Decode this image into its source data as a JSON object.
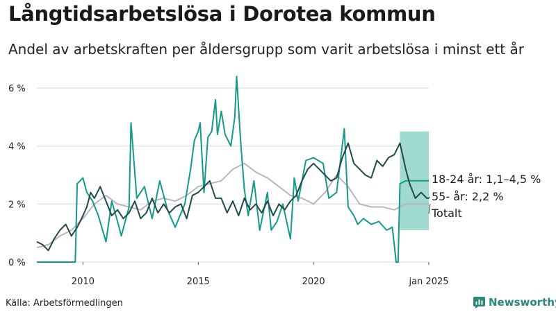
{
  "header": {
    "title": "Långtidsarbetslösa i Dorotea kommun",
    "subtitle": "Andel av arbetskraften per åldersgrupp som varit arbetslösa i minst ett år"
  },
  "footer": {
    "source": "Källa: Arbetsförmedlingen",
    "brand": "Newsworthy"
  },
  "colors": {
    "age_18_24": "#14998a",
    "band_18_24": "#8fd3c9",
    "age_55": "#1f4a47",
    "total": "#b9b5bf",
    "grid": "#d9d9d9"
  },
  "chart_data": {
    "type": "line",
    "x_ticks": [
      "2010",
      "2015",
      "2020",
      "jan 2025"
    ],
    "y_ticks": [
      "0 %",
      "2 %",
      "4 %",
      "6 %"
    ],
    "ylim": [
      0,
      6.5
    ],
    "xlim": [
      "2008-01",
      "2025-01"
    ],
    "grid": "horizontal",
    "series": [
      {
        "key": "age_18_24",
        "label": "18-24 år: 1,1–4,5 %",
        "end_band": [
          1.1,
          4.5
        ],
        "points": [
          [
            "2008-01",
            0
          ],
          [
            "2009-06",
            0
          ],
          [
            "2009-09",
            0
          ],
          [
            "2009-10",
            2.7
          ],
          [
            "2010-01",
            2.9
          ],
          [
            "2010-03",
            2.4
          ],
          [
            "2010-06",
            2.1
          ],
          [
            "2010-09",
            1.6
          ],
          [
            "2011-01",
            0.7
          ],
          [
            "2011-04",
            2.1
          ],
          [
            "2011-07",
            1.4
          ],
          [
            "2011-09",
            0.9
          ],
          [
            "2012-01",
            1.9
          ],
          [
            "2012-02",
            4.8
          ],
          [
            "2012-05",
            2.2
          ],
          [
            "2012-09",
            2.6
          ],
          [
            "2013-01",
            1.5
          ],
          [
            "2013-05",
            2.8
          ],
          [
            "2013-09",
            1.8
          ],
          [
            "2014-01",
            1.2
          ],
          [
            "2014-06",
            2.0
          ],
          [
            "2014-09",
            3.2
          ],
          [
            "2014-11",
            4.2
          ],
          [
            "2015-01",
            4.5
          ],
          [
            "2015-02",
            4.8
          ],
          [
            "2015-04",
            2.4
          ],
          [
            "2015-06",
            4.3
          ],
          [
            "2015-08",
            4.5
          ],
          [
            "2015-10",
            5.6
          ],
          [
            "2015-11",
            4.4
          ],
          [
            "2016-01",
            5.2
          ],
          [
            "2016-03",
            4.4
          ],
          [
            "2016-06",
            4.0
          ],
          [
            "2016-08",
            5.0
          ],
          [
            "2016-09",
            6.4
          ],
          [
            "2016-11",
            4.2
          ],
          [
            "2017-01",
            2.5
          ],
          [
            "2017-03",
            1.6
          ],
          [
            "2017-06",
            2.8
          ],
          [
            "2017-09",
            1.1
          ],
          [
            "2018-01",
            2.4
          ],
          [
            "2018-03",
            1.1
          ],
          [
            "2018-06",
            1.4
          ],
          [
            "2018-09",
            2.0
          ],
          [
            "2019-01",
            0.8
          ],
          [
            "2019-03",
            2.9
          ],
          [
            "2019-05",
            2.1
          ],
          [
            "2019-09",
            3.5
          ],
          [
            "2020-01",
            3.6
          ],
          [
            "2020-06",
            3.4
          ],
          [
            "2020-09",
            2.2
          ],
          [
            "2021-01",
            2.4
          ],
          [
            "2021-05",
            4.6
          ],
          [
            "2021-07",
            1.9
          ],
          [
            "2021-10",
            1.6
          ],
          [
            "2021-12",
            1.3
          ],
          [
            "2022-03",
            1.5
          ],
          [
            "2022-07",
            1.3
          ],
          [
            "2022-11",
            1.4
          ],
          [
            "2023-03",
            1.1
          ],
          [
            "2023-06",
            1.2
          ],
          [
            "2023-08",
            0.0
          ],
          [
            "2023-09",
            0.0
          ],
          [
            "2023-10",
            2.7
          ],
          [
            "2024-01",
            2.8
          ],
          [
            "2024-06",
            2.8
          ],
          [
            "2025-01",
            2.8
          ]
        ]
      },
      {
        "key": "age_55",
        "label": "55- år: 2,2 %",
        "points": [
          [
            "2008-01",
            0.7
          ],
          [
            "2008-04",
            0.6
          ],
          [
            "2008-07",
            0.4
          ],
          [
            "2008-10",
            0.8
          ],
          [
            "2009-01",
            1.1
          ],
          [
            "2009-04",
            1.3
          ],
          [
            "2009-07",
            0.9
          ],
          [
            "2009-10",
            1.2
          ],
          [
            "2010-01",
            1.6
          ],
          [
            "2010-03",
            1.9
          ],
          [
            "2010-05",
            2.4
          ],
          [
            "2010-07",
            2.2
          ],
          [
            "2010-10",
            2.6
          ],
          [
            "2011-01",
            2.1
          ],
          [
            "2011-04",
            1.6
          ],
          [
            "2011-07",
            1.8
          ],
          [
            "2011-10",
            1.5
          ],
          [
            "2012-01",
            1.7
          ],
          [
            "2012-04",
            2.1
          ],
          [
            "2012-07",
            1.5
          ],
          [
            "2012-10",
            1.7
          ],
          [
            "2013-01",
            2.2
          ],
          [
            "2013-04",
            1.7
          ],
          [
            "2013-07",
            2.0
          ],
          [
            "2013-10",
            1.7
          ],
          [
            "2014-01",
            1.9
          ],
          [
            "2014-04",
            2.0
          ],
          [
            "2014-07",
            1.5
          ],
          [
            "2014-10",
            2.3
          ],
          [
            "2015-01",
            2.4
          ],
          [
            "2015-04",
            2.6
          ],
          [
            "2015-07",
            2.8
          ],
          [
            "2015-10",
            2.2
          ],
          [
            "2016-01",
            2.2
          ],
          [
            "2016-04",
            1.7
          ],
          [
            "2016-07",
            2.1
          ],
          [
            "2016-10",
            1.6
          ],
          [
            "2017-01",
            2.2
          ],
          [
            "2017-04",
            1.8
          ],
          [
            "2017-07",
            2.0
          ],
          [
            "2017-10",
            1.7
          ],
          [
            "2018-01",
            2.1
          ],
          [
            "2018-04",
            1.6
          ],
          [
            "2018-07",
            2.0
          ],
          [
            "2018-10",
            1.8
          ],
          [
            "2019-01",
            2.1
          ],
          [
            "2019-04",
            2.3
          ],
          [
            "2019-07",
            2.8
          ],
          [
            "2019-10",
            3.2
          ],
          [
            "2020-01",
            3.4
          ],
          [
            "2020-04",
            3.2
          ],
          [
            "2020-07",
            3.0
          ],
          [
            "2020-10",
            2.8
          ],
          [
            "2021-01",
            2.9
          ],
          [
            "2021-04",
            3.6
          ],
          [
            "2021-07",
            4.1
          ],
          [
            "2021-10",
            3.4
          ],
          [
            "2022-01",
            3.2
          ],
          [
            "2022-04",
            3.0
          ],
          [
            "2022-07",
            2.9
          ],
          [
            "2022-10",
            3.5
          ],
          [
            "2023-01",
            3.3
          ],
          [
            "2023-04",
            3.6
          ],
          [
            "2023-07",
            3.7
          ],
          [
            "2023-10",
            4.1
          ],
          [
            "2024-01",
            3.2
          ],
          [
            "2024-03",
            2.7
          ],
          [
            "2024-06",
            2.2
          ],
          [
            "2024-09",
            2.4
          ],
          [
            "2024-12",
            2.2
          ],
          [
            "2025-01",
            2.2
          ]
        ]
      },
      {
        "key": "total",
        "label": "Totalt",
        "points": [
          [
            "2008-01",
            0.5
          ],
          [
            "2008-07",
            0.6
          ],
          [
            "2009-01",
            0.9
          ],
          [
            "2009-07",
            1.1
          ],
          [
            "2010-01",
            1.5
          ],
          [
            "2010-07",
            2.0
          ],
          [
            "2011-01",
            2.3
          ],
          [
            "2011-07",
            2.0
          ],
          [
            "2012-01",
            1.9
          ],
          [
            "2012-07",
            1.8
          ],
          [
            "2013-01",
            2.1
          ],
          [
            "2013-07",
            2.2
          ],
          [
            "2014-01",
            2.1
          ],
          [
            "2014-07",
            2.3
          ],
          [
            "2015-01",
            2.6
          ],
          [
            "2015-07",
            2.7
          ],
          [
            "2016-01",
            2.8
          ],
          [
            "2016-07",
            3.2
          ],
          [
            "2017-01",
            3.4
          ],
          [
            "2017-07",
            3.1
          ],
          [
            "2018-01",
            2.9
          ],
          [
            "2018-07",
            2.6
          ],
          [
            "2019-01",
            2.3
          ],
          [
            "2019-07",
            2.2
          ],
          [
            "2020-01",
            2.0
          ],
          [
            "2020-07",
            2.4
          ],
          [
            "2021-01",
            3.0
          ],
          [
            "2021-07",
            2.6
          ],
          [
            "2022-01",
            2.0
          ],
          [
            "2022-07",
            1.9
          ],
          [
            "2023-01",
            1.9
          ],
          [
            "2023-07",
            1.8
          ],
          [
            "2024-01",
            2.0
          ],
          [
            "2024-07",
            2.0
          ],
          [
            "2025-01",
            2.0
          ]
        ]
      }
    ]
  }
}
